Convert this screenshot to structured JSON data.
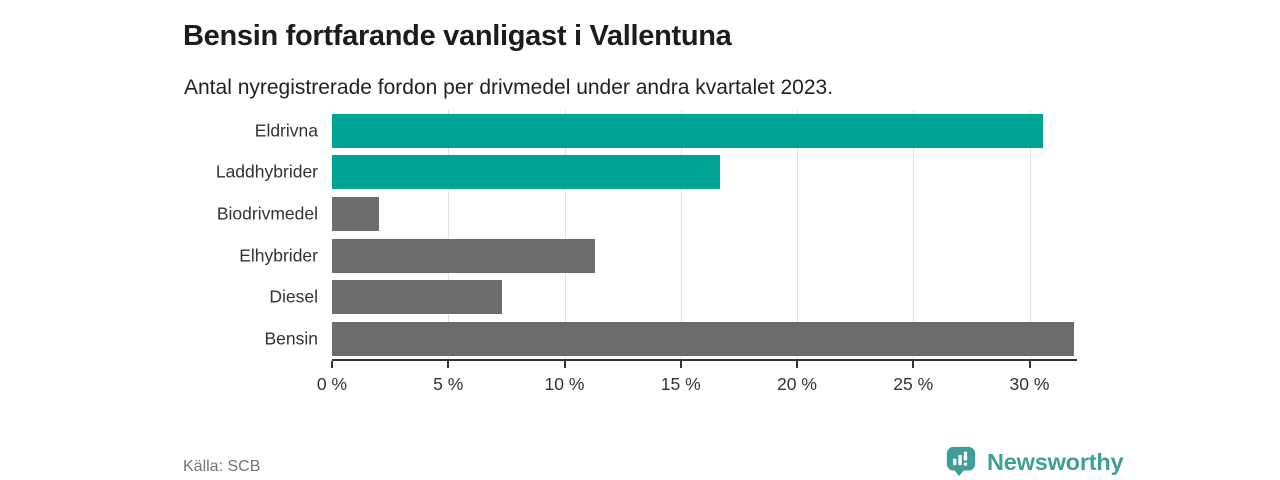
{
  "header": {
    "title": "Bensin fortfarande vanligast i Vallentuna",
    "subtitle": "Antal nyregistrerade fordon per drivmedel under andra kvartalet 2023."
  },
  "chart_data": {
    "type": "bar",
    "orientation": "horizontal",
    "title": "Bensin fortfarande vanligast i Vallentuna",
    "subtitle": "Antal nyregistrerade fordon per drivmedel under andra kvartalet 2023.",
    "categories": [
      "Eldrivna",
      "Laddhybrider",
      "Biodrivmedel",
      "Elhybrider",
      "Diesel",
      "Bensin"
    ],
    "values": [
      30.6,
      16.7,
      2.0,
      11.3,
      7.3,
      31.9
    ],
    "bar_colors": [
      "#00a496",
      "#00a496",
      "#6c6b6e",
      "#6c6b6e",
      "#6c6b6e",
      "#6c6b6e"
    ],
    "xlabel": "",
    "ylabel": "",
    "xlim": [
      0,
      32
    ],
    "x_ticks": [
      0,
      5,
      10,
      15,
      20,
      25,
      30
    ],
    "x_tick_format": "{v} %",
    "grid": "vertical",
    "legend": false
  },
  "footer": {
    "source": "Källa: SCB",
    "brand": "Newsworthy"
  },
  "colors": {
    "accent_teal": "#00a496",
    "bar_gray": "#6c6b6e",
    "brand_teal": "#3f9e97",
    "gridline": "#e1e1e1",
    "axis": "#333333"
  }
}
